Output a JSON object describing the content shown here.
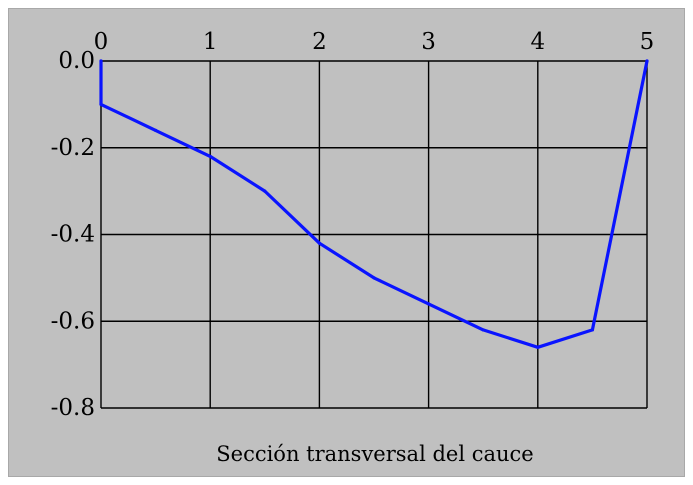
{
  "chart_data": {
    "type": "line",
    "title": "",
    "xlabel": "Sección transversal del cauce",
    "ylabel": "",
    "xlim": [
      0,
      5
    ],
    "ylim": [
      -0.8,
      0.0
    ],
    "x_ticks": [
      0,
      1,
      2,
      3,
      4,
      5
    ],
    "x_tick_labels": [
      "0",
      "1",
      "2",
      "3",
      "4",
      "5"
    ],
    "y_ticks": [
      0.0,
      -0.2,
      -0.4,
      -0.6,
      -0.8
    ],
    "y_tick_labels": [
      "0.0",
      "-0.2",
      "-0.4",
      "-0.6",
      "-0.8"
    ],
    "x_axis_position": "top",
    "grid": true,
    "series": [
      {
        "color": "#0a14ff",
        "x": [
          0,
          0,
          0.5,
          1.0,
          1.5,
          2.0,
          2.5,
          3.0,
          3.5,
          4.0,
          4.5,
          5.0
        ],
        "y": [
          0.0,
          -0.1,
          -0.16,
          -0.22,
          -0.3,
          -0.42,
          -0.5,
          -0.56,
          -0.62,
          -0.66,
          -0.62,
          0.0
        ]
      }
    ],
    "colors": {
      "background": "#c0c0c0",
      "grid": "#000000",
      "line": "#0a14ff"
    }
  }
}
